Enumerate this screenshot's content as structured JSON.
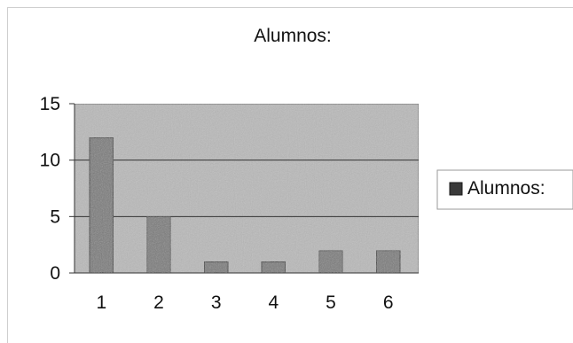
{
  "chart_data": {
    "type": "bar",
    "title": "Alumnos:",
    "xlabel": "",
    "ylabel": "",
    "categories": [
      "1",
      "2",
      "3",
      "4",
      "5",
      "6"
    ],
    "series": [
      {
        "name": "Alumnos:",
        "values": [
          12,
          5,
          1,
          1,
          2,
          2
        ]
      }
    ],
    "ylim": [
      0,
      15
    ],
    "yticks": [
      0,
      5,
      10,
      15
    ],
    "grid": true,
    "legend_position": "right",
    "colors": {
      "bar": "#7a7a7a",
      "bar_stroke": "#2a2a2a",
      "plot_background": "#b9b9b9",
      "gridline": "#333333",
      "legend_swatch": "#3a3a3a"
    }
  }
}
